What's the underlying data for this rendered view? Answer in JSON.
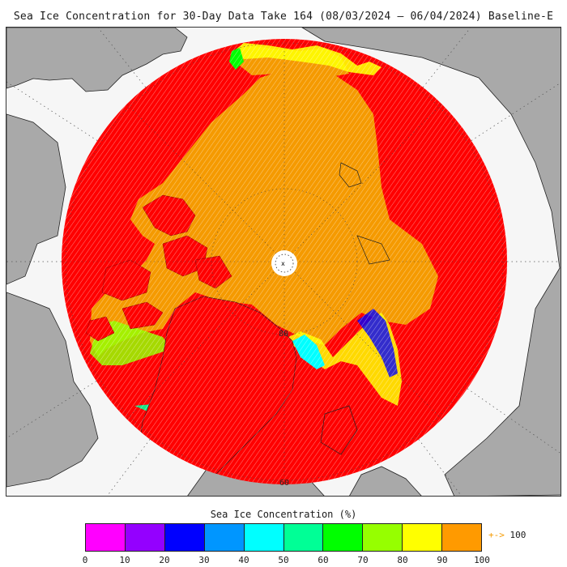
{
  "title": "Sea Ice Concentration for 30-Day Data Take 164 (08/03/2024 – 06/04/2024) Baseline-E",
  "map": {
    "projection": "north-polar-stereographic",
    "latitude_labels": [
      "80",
      "60"
    ],
    "pole_marker": "pole-hole-icon"
  },
  "legend": {
    "title": "Sea Ice Concentration (%)",
    "ticks": [
      "0",
      "10",
      "20",
      "30",
      "40",
      "50",
      "60",
      "70",
      "80",
      "90",
      "100"
    ],
    "colors": [
      "#ff00ff",
      "#9400ff",
      "#0000ff",
      "#0096ff",
      "#00ffff",
      "#00ff96",
      "#00ff00",
      "#96ff00",
      "#ffff00",
      "#ff9a00"
    ],
    "overflow_label": "100",
    "overflow_arrow": "+->"
  },
  "colors": {
    "ocean_ice_free": "#ff0000",
    "sea_ice_100": "#f59a00",
    "land": "#a9a9a9",
    "background": "#f6f6f6"
  }
}
